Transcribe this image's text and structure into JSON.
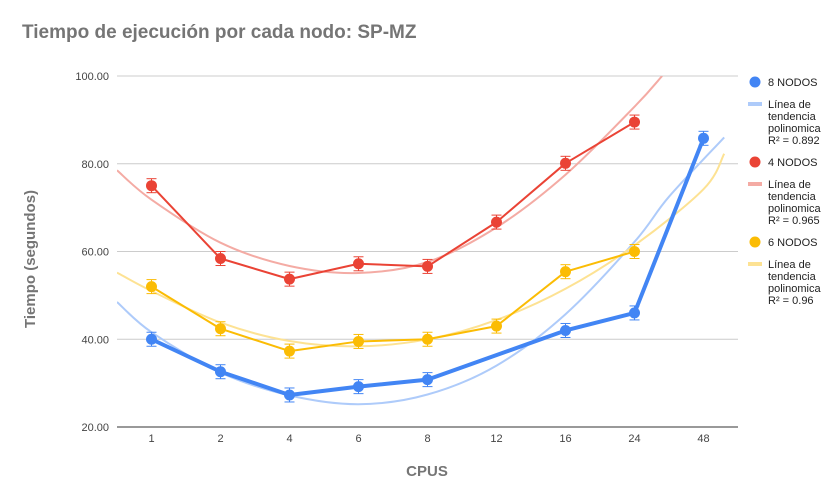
{
  "chart_data": {
    "type": "line",
    "title": "Tiempo de ejecución por cada nodo: SP-MZ",
    "xlabel": "CPUS",
    "ylabel": "Tiempo (segundos)",
    "categories": [
      "1",
      "2",
      "4",
      "6",
      "8",
      "12",
      "16",
      "24",
      "48"
    ],
    "ylim": [
      20,
      100
    ],
    "yticks": [
      "20.00",
      "40.00",
      "60.00",
      "80.00",
      "100.00"
    ],
    "yticks_values": [
      20,
      40,
      60,
      80,
      100
    ],
    "grid": true,
    "legend_position": "right",
    "series": [
      {
        "name": "8 NODOS",
        "color": "#4285f4",
        "values": [
          40.0,
          32.6,
          27.3,
          29.2,
          30.8,
          null,
          42.0,
          46.0,
          85.8
        ],
        "trendline": {
          "label_lines": [
            "Línea de",
            "tendencia",
            "polinomica",
            "R² = 0.892"
          ],
          "color": "#aecbfa",
          "points": [
            [
              0.5,
              48.5
            ],
            [
              1,
              41.6
            ],
            [
              2,
              32.4
            ],
            [
              3,
              27.2
            ],
            [
              4,
              25.2
            ],
            [
              5,
              27.4
            ],
            [
              6,
              34.0
            ],
            [
              7,
              45.7
            ],
            [
              8,
              62.2
            ],
            [
              8.5,
              72.5
            ],
            [
              9.3,
              86.0
            ]
          ]
        }
      },
      {
        "name": "4 NODOS",
        "color": "#ea4335",
        "values": [
          75.0,
          58.4,
          53.7,
          57.2,
          56.6,
          66.7,
          80.1,
          89.5,
          null
        ],
        "trendline": {
          "label_lines": [
            "Línea de",
            "tendencia",
            "polinomica",
            "R² = 0.965"
          ],
          "color": "#f4aba4",
          "points": [
            [
              0.5,
              78.5
            ],
            [
              1,
              71.8
            ],
            [
              2,
              62.0
            ],
            [
              3,
              56.7
            ],
            [
              4,
              55.1
            ],
            [
              5,
              57.6
            ],
            [
              6,
              65.5
            ],
            [
              7,
              77.5
            ],
            [
              8,
              93.0
            ],
            [
              8.4,
              100.0
            ]
          ]
        }
      },
      {
        "name": "6 NODOS",
        "color": "#fbbc04",
        "values": [
          52.0,
          42.4,
          37.3,
          39.5,
          40.0,
          43.0,
          55.4,
          60.0,
          null
        ],
        "trendline": {
          "label_lines": [
            "Línea de",
            "tendencia",
            "polinomica",
            "R² = 0.96"
          ],
          "color": "#fde293",
          "points": [
            [
              0.5,
              55.2
            ],
            [
              1,
              51.0
            ],
            [
              2,
              43.8
            ],
            [
              3,
              39.6
            ],
            [
              4,
              38.4
            ],
            [
              5,
              40.0
            ],
            [
              6,
              44.4
            ],
            [
              7,
              51.5
            ],
            [
              8,
              61.4
            ],
            [
              9,
              74.2
            ],
            [
              9.3,
              82.3
            ]
          ]
        }
      }
    ]
  }
}
